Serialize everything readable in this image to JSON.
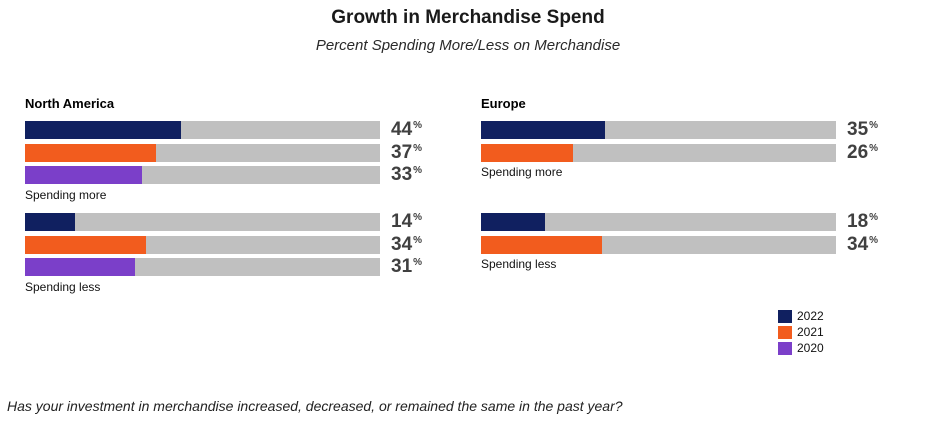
{
  "chart_data": {
    "type": "bar",
    "title": "Growth in Merchandise Spend",
    "subtitle": "Percent Spending More/Less on Merchandise",
    "value_suffix": "%",
    "xlim": [
      0,
      100
    ],
    "legend": {
      "placement": "bottom-right",
      "items": [
        {
          "name": "2022",
          "color": "#102060"
        },
        {
          "name": "2021",
          "color": "#f25c1e"
        },
        {
          "name": "2020",
          "color": "#7b3fc9"
        }
      ]
    },
    "panels": [
      {
        "region": "North America",
        "groups": [
          {
            "label": "Spending more",
            "series": [
              {
                "name": "2022",
                "value": 44
              },
              {
                "name": "2021",
                "value": 37
              },
              {
                "name": "2020",
                "value": 33
              }
            ]
          },
          {
            "label": "Spending less",
            "series": [
              {
                "name": "2022",
                "value": 14
              },
              {
                "name": "2021",
                "value": 34
              },
              {
                "name": "2020",
                "value": 31
              }
            ]
          }
        ]
      },
      {
        "region": "Europe",
        "groups": [
          {
            "label": "Spending more",
            "series": [
              {
                "name": "2022",
                "value": 35
              },
              {
                "name": "2021",
                "value": 26
              }
            ]
          },
          {
            "label": "Spending less",
            "series": [
              {
                "name": "2022",
                "value": 18
              },
              {
                "name": "2021",
                "value": 34
              }
            ]
          }
        ]
      }
    ],
    "footnote": "Has your investment in merchandise increased, decreased, or remained the same in the past year?"
  }
}
